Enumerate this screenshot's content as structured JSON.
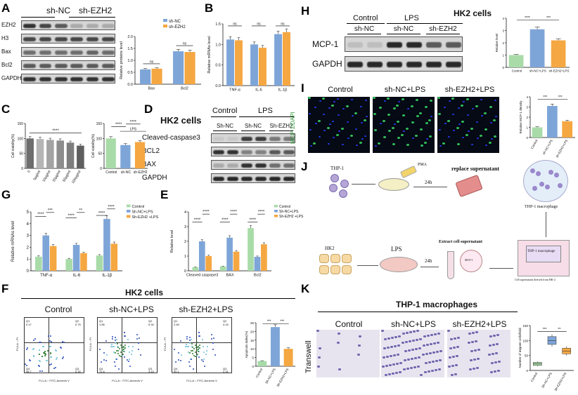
{
  "panel_labels": {
    "A": "A",
    "B": "B",
    "C": "C",
    "D": "D",
    "E": "E",
    "F": "F",
    "G": "G",
    "H": "H",
    "I": "I",
    "J": "J",
    "K": "K"
  },
  "colors": {
    "blue": "#7ea5d8",
    "orange": "#f5a742",
    "green": "#a8dba8",
    "grey": "#9a9a9a",
    "purple": "#4a3f9a"
  },
  "panelA": {
    "header_left": "sh-NC",
    "header_right": "sh-EZH2",
    "rows": [
      "EZH2",
      "H3",
      "Bax",
      "Bcl2",
      "GAPDH"
    ]
  },
  "panelD": {
    "title": "HK2 cells",
    "group_control": "Control",
    "group_lps": "LPS",
    "lanes": [
      "Sh-NC",
      "Sh-NC",
      "Sh-EZH2"
    ],
    "rows": [
      "Cleaved-caspase3",
      "BCL2",
      "BAX",
      "GAPDH"
    ]
  },
  "panelH": {
    "title": "HK2 cells",
    "group_control": "Control",
    "group_lps": "LPS",
    "lanes": [
      "sh-NC",
      "sh-NC",
      "sh-EZH2"
    ],
    "rows": [
      "MCP-1",
      "GAPDH"
    ]
  },
  "panelI": {
    "conditions": [
      "Control",
      "sh-NC+LPS",
      "sh-EZH2+LPS"
    ],
    "stain_label": "MCP-1/DAPI"
  },
  "panelF": {
    "title": "HK2 cells",
    "conditions": [
      "Control",
      "sh-NC+LPS",
      "sh-EZH2+LPS"
    ],
    "quadrants": [
      {
        "q1": "Q1",
        "q2": "Q2",
        "q3": "Q3",
        "q4": "Q4",
        "v1": "0.17",
        "v2": "0.75",
        "v3": "0.30",
        "v4": "98.7"
      },
      {
        "q1": "Q1",
        "q2": "Q2",
        "q3": "Q3",
        "q4": "Q4",
        "v1": "1.56",
        "v2": "5.34",
        "v3": "3.43",
        "v4": "72.6"
      },
      {
        "q1": "Q1",
        "q2": "Q2",
        "q3": "Q3",
        "q4": "Q4",
        "v1": "2.46",
        "v2": "4.15",
        "v3": "2.31",
        "v4": "90.1"
      }
    ],
    "xaxis": "FL1-A :: FITC-Annexin V",
    "yaxis": "FL3-A :: PI"
  },
  "panelJ": {
    "thp1": "THP-1",
    "pma": "PMA",
    "h24a": "24h",
    "replace": "replace supernatant",
    "macrophage": "THP-1 macrophage",
    "hk2": "HK2",
    "lps": "LPS",
    "h24b": "24h",
    "extract": "Extract cell supernatant",
    "mcp1": "MCP-1",
    "transwell_top": "THP-1 macrophage",
    "cell_sup": "Cell supernatant derived from HK-2"
  },
  "panelK": {
    "title": "THP-1 macrophages",
    "side": "Transwell",
    "conditions": [
      "Control",
      "sh-NC+LPS",
      "sh-EZH2+LPS"
    ]
  },
  "chart_data": [
    {
      "id": "A_bar",
      "type": "bar",
      "title": "",
      "ylabel": "Relative proteins level",
      "xlabel": "",
      "categories": [
        "Bax",
        "Bcl2"
      ],
      "ylim": [
        0,
        2.0
      ],
      "yticks": [
        "0.0",
        "0.5",
        "1.0",
        "1.5",
        "2.0"
      ],
      "series": [
        {
          "name": "sh-NC",
          "color": "#7ea5d8",
          "values": [
            0.62,
            1.38
          ]
        },
        {
          "name": "sh-EZH2",
          "color": "#f5a742",
          "values": [
            0.65,
            1.35
          ]
        }
      ],
      "annotations": [
        "ns",
        "ns"
      ]
    },
    {
      "id": "B_bar",
      "type": "bar",
      "title": "",
      "ylabel": "Relative mRNAs level",
      "xlabel": "",
      "categories": [
        "TNF-α",
        "IL-6",
        "IL-1β"
      ],
      "ylim": [
        0,
        1.5
      ],
      "yticks": [
        "0.0",
        "0.5",
        "1.0",
        "1.5"
      ],
      "series": [
        {
          "name": "",
          "color": "#7ea5d8",
          "values": [
            1.12,
            1.0,
            1.25
          ]
        },
        {
          "name": "",
          "color": "#f5a742",
          "values": [
            1.1,
            0.92,
            1.3
          ]
        }
      ],
      "annotations": [
        "ns",
        "ns",
        "ns"
      ]
    },
    {
      "id": "C_bar1",
      "type": "bar",
      "title": "",
      "ylabel": "Cell viability(%)",
      "xlabel": "",
      "categories": [
        "0",
        "5μg/ml",
        "10μg/ml",
        "20μg/ml",
        "50μg/ml",
        "100μg/ml"
      ],
      "ylim": [
        0,
        150
      ],
      "yticks": [
        "0",
        "50",
        "100",
        "150"
      ],
      "series": [
        {
          "name": "",
          "values": [
            100,
            98,
            95,
            93,
            86,
            76
          ]
        }
      ],
      "annotations": [
        "****"
      ]
    },
    {
      "id": "C_bar2",
      "type": "bar",
      "title": "",
      "ylabel": "Cell viability(%)",
      "xlabel": "",
      "categories": [
        "Control",
        "sh-NC",
        "sh-EZH2"
      ],
      "ylim": [
        0,
        150
      ],
      "yticks": [
        "0",
        "50",
        "100",
        "150"
      ],
      "series": [
        {
          "name": "",
          "values": [
            100,
            78,
            88
          ]
        }
      ],
      "group_label": "LPS",
      "annotations": [
        "****",
        "****"
      ]
    },
    {
      "id": "G_bar",
      "type": "bar",
      "title": "",
      "ylabel": "Relative mRNAs level",
      "xlabel": "",
      "categories": [
        "TNF-α",
        "IL-6",
        "IL-1β"
      ],
      "ylim": [
        0,
        5
      ],
      "yticks": [
        "0",
        "1",
        "2",
        "3",
        "4",
        "5"
      ],
      "series": [
        {
          "name": "Control",
          "color": "#a8dba8",
          "values": [
            1.2,
            1.0,
            1.3
          ]
        },
        {
          "name": "Sh-NC+LPS",
          "color": "#7ea5d8",
          "values": [
            3.0,
            2.2,
            4.4
          ]
        },
        {
          "name": "Sh-EZH2 +LPS",
          "color": "#f5a742",
          "values": [
            2.1,
            1.5,
            2.3
          ]
        }
      ],
      "annotations": [
        "****",
        "***",
        "****",
        "**",
        "****",
        "****"
      ]
    },
    {
      "id": "E_bar",
      "type": "bar",
      "title": "",
      "ylabel": "Relative level",
      "xlabel": "",
      "categories": [
        "Cleaved caspase3",
        "BAX",
        "Bcl2"
      ],
      "ylim": [
        0,
        4
      ],
      "yticks": [
        "0",
        "1",
        "2",
        "3",
        "4"
      ],
      "series": [
        {
          "name": "Control",
          "color": "#a8dba8",
          "values": [
            0.25,
            0.3,
            2.9
          ]
        },
        {
          "name": "Sh-NC+LPS",
          "color": "#7ea5d8",
          "values": [
            2.0,
            2.25,
            0.95
          ]
        },
        {
          "name": "Sh-EZH2 +LPS",
          "color": "#f5a742",
          "values": [
            1.0,
            1.3,
            1.8
          ]
        }
      ],
      "annotations": [
        "****",
        "****",
        "****",
        "****",
        "****",
        "****"
      ]
    },
    {
      "id": "F_bar",
      "type": "bar",
      "title": "",
      "ylabel": "Apoptosis index(%)",
      "xlabel": "",
      "categories": [
        "Control",
        "Sh-NC+LPS",
        "Sh-EZH2+LPS"
      ],
      "ylim": [
        0,
        25
      ],
      "yticks": [
        "0",
        "5",
        "10",
        "15",
        "20",
        "25"
      ],
      "series": [
        {
          "name": "",
          "values": [
            3,
            22.5,
            10
          ]
        }
      ],
      "annotations": [
        "***",
        "***"
      ]
    },
    {
      "id": "H_bar",
      "type": "bar",
      "title": "",
      "ylabel": "Relative level",
      "xlabel": "",
      "categories": [
        "Control",
        "sh-NC+LPS",
        "sh-EZH2+LPS"
      ],
      "ylim": [
        0,
        4
      ],
      "yticks": [
        "0",
        "1",
        "2",
        "3",
        "4"
      ],
      "series": [
        {
          "name": "",
          "values": [
            1.0,
            3.1,
            2.2
          ]
        }
      ],
      "annotations": [
        "****",
        "***"
      ]
    },
    {
      "id": "I_bar",
      "type": "bar",
      "title": "",
      "ylabel": "Relative MCP-1 density",
      "xlabel": "",
      "categories": [
        "Control",
        "sh-NC+LPS",
        "sh-EZH2+LPS"
      ],
      "ylim": [
        0,
        4
      ],
      "yticks": [
        "0",
        "1",
        "2",
        "3",
        "4"
      ],
      "series": [
        {
          "name": "",
          "values": [
            1.0,
            3.1,
            1.6
          ]
        }
      ],
      "annotations": [
        "***",
        "***"
      ]
    },
    {
      "id": "K_box",
      "type": "box",
      "title": "",
      "ylabel": "Number of migrate cells/field",
      "xlabel": "",
      "categories": [
        "Control",
        "Sh-NC+LPS",
        "Sh-EZH2+LPS"
      ],
      "ylim": [
        0,
        150
      ],
      "yticks": [
        "0",
        "50",
        "100",
        "150"
      ],
      "series": [
        {
          "name": "",
          "values": [
            22,
            100,
            65
          ]
        }
      ],
      "annotations": [
        "***",
        "**"
      ]
    }
  ]
}
